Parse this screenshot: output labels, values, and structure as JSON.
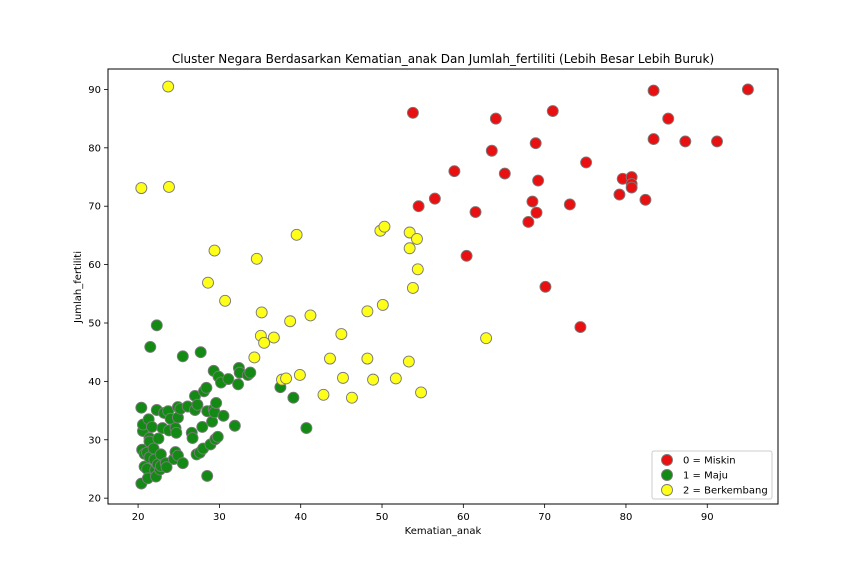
{
  "chart_data": {
    "type": "scatter",
    "title": "Cluster Negara Berdasarkan Kematian_anak Dan Jumlah_fertiliti (Lebih Besar Lebih Buruk)",
    "xlabel": "Kematian_anak",
    "ylabel": "Jumlah_fertiliti",
    "xlim": [
      16.3,
      98.7
    ],
    "ylim": [
      19.0,
      93.5
    ],
    "xticks": [
      20,
      30,
      40,
      50,
      60,
      70,
      80,
      90
    ],
    "yticks": [
      20,
      30,
      40,
      50,
      60,
      70,
      80,
      90
    ],
    "grid": false,
    "legend_position": "lower-right",
    "series": [
      {
        "name": "0 = Miskin",
        "color": "#e81010",
        "points": [
          [
            53.8,
            86.0
          ],
          [
            54.5,
            70.0
          ],
          [
            56.5,
            71.3
          ],
          [
            58.9,
            76.0
          ],
          [
            60.4,
            61.5
          ],
          [
            61.5,
            69.0
          ],
          [
            63.5,
            79.5
          ],
          [
            64.0,
            85.0
          ],
          [
            65.1,
            75.6
          ],
          [
            68.0,
            67.3
          ],
          [
            68.5,
            70.8
          ],
          [
            68.9,
            80.8
          ],
          [
            69.0,
            68.9
          ],
          [
            69.2,
            74.4
          ],
          [
            70.1,
            56.2
          ],
          [
            71.0,
            86.3
          ],
          [
            73.1,
            70.3
          ],
          [
            74.4,
            49.3
          ],
          [
            75.1,
            77.5
          ],
          [
            79.2,
            72.0
          ],
          [
            79.6,
            74.7
          ],
          [
            80.7,
            75.0
          ],
          [
            80.7,
            73.8
          ],
          [
            80.7,
            73.2
          ],
          [
            82.4,
            71.1
          ],
          [
            83.4,
            89.8
          ],
          [
            83.4,
            81.5
          ],
          [
            85.2,
            85.0
          ],
          [
            87.3,
            81.1
          ],
          [
            91.2,
            81.1
          ],
          [
            95.0,
            90.0
          ]
        ]
      },
      {
        "name": "1 = Maju",
        "color": "#138a13",
        "points": [
          [
            20.4,
            22.5
          ],
          [
            20.4,
            35.5
          ],
          [
            20.5,
            28.3
          ],
          [
            20.6,
            31.5
          ],
          [
            20.6,
            32.6
          ],
          [
            20.8,
            27.6
          ],
          [
            20.8,
            25.4
          ],
          [
            21.1,
            27.8
          ],
          [
            21.1,
            25.0
          ],
          [
            21.2,
            23.4
          ],
          [
            21.3,
            33.5
          ],
          [
            21.4,
            30.3
          ],
          [
            21.4,
            29.7
          ],
          [
            21.4,
            27.0
          ],
          [
            21.5,
            45.9
          ],
          [
            21.7,
            32.2
          ],
          [
            21.9,
            28.5
          ],
          [
            22.0,
            26.6
          ],
          [
            22.1,
            24.8
          ],
          [
            22.2,
            23.7
          ],
          [
            22.3,
            49.6
          ],
          [
            22.3,
            35.1
          ],
          [
            22.4,
            25.8
          ],
          [
            22.5,
            30.2
          ],
          [
            22.7,
            24.9
          ],
          [
            22.8,
            27.5
          ],
          [
            22.8,
            25.5
          ],
          [
            23.0,
            32.0
          ],
          [
            23.2,
            34.6
          ],
          [
            23.4,
            26.0
          ],
          [
            23.5,
            25.3
          ],
          [
            23.7,
            34.9
          ],
          [
            23.8,
            31.6
          ],
          [
            24.0,
            33.6
          ],
          [
            24.4,
            26.7
          ],
          [
            24.6,
            27.9
          ],
          [
            24.6,
            32.0
          ],
          [
            24.7,
            31.2
          ],
          [
            24.9,
            35.6
          ],
          [
            24.9,
            33.8
          ],
          [
            24.9,
            27.3
          ],
          [
            25.2,
            35.3
          ],
          [
            25.5,
            44.3
          ],
          [
            25.5,
            26.0
          ],
          [
            26.1,
            35.7
          ],
          [
            26.6,
            31.2
          ],
          [
            26.7,
            30.3
          ],
          [
            27.0,
            37.5
          ],
          [
            27.0,
            35.1
          ],
          [
            27.2,
            27.5
          ],
          [
            27.3,
            36.0
          ],
          [
            27.6,
            27.8
          ],
          [
            27.7,
            45.0
          ],
          [
            27.9,
            32.2
          ],
          [
            28.0,
            28.5
          ],
          [
            28.1,
            38.3
          ],
          [
            28.4,
            38.9
          ],
          [
            28.5,
            34.9
          ],
          [
            28.5,
            23.8
          ],
          [
            28.9,
            29.2
          ],
          [
            29.1,
            33.1
          ],
          [
            29.3,
            41.8
          ],
          [
            29.3,
            35.2
          ],
          [
            29.4,
            34.7
          ],
          [
            29.5,
            30.1
          ],
          [
            29.6,
            36.3
          ],
          [
            29.8,
            30.5
          ],
          [
            29.9,
            40.8
          ],
          [
            30.2,
            39.8
          ],
          [
            30.5,
            34.1
          ],
          [
            31.1,
            40.4
          ],
          [
            31.9,
            32.4
          ],
          [
            32.3,
            39.5
          ],
          [
            32.4,
            42.3
          ],
          [
            32.5,
            41.5
          ],
          [
            33.5,
            41.1
          ],
          [
            33.8,
            41.5
          ],
          [
            37.5,
            39.0
          ],
          [
            39.1,
            37.2
          ],
          [
            40.7,
            32.0
          ]
        ]
      },
      {
        "name": "2 = Berkembang",
        "color": "#ffff1a",
        "points": [
          [
            20.4,
            73.1
          ],
          [
            23.7,
            90.5
          ],
          [
            23.8,
            73.3
          ],
          [
            28.6,
            56.9
          ],
          [
            29.4,
            62.4
          ],
          [
            30.7,
            53.8
          ],
          [
            34.3,
            44.1
          ],
          [
            34.6,
            61.0
          ],
          [
            35.1,
            47.8
          ],
          [
            35.2,
            51.8
          ],
          [
            35.5,
            46.6
          ],
          [
            36.7,
            47.5
          ],
          [
            37.7,
            40.3
          ],
          [
            38.2,
            40.5
          ],
          [
            38.7,
            50.3
          ],
          [
            39.5,
            65.1
          ],
          [
            39.9,
            41.1
          ],
          [
            41.2,
            51.3
          ],
          [
            42.8,
            37.7
          ],
          [
            43.6,
            43.9
          ],
          [
            45.0,
            48.1
          ],
          [
            45.2,
            40.6
          ],
          [
            46.3,
            37.2
          ],
          [
            48.2,
            52.0
          ],
          [
            48.2,
            43.9
          ],
          [
            48.9,
            40.3
          ],
          [
            49.8,
            65.8
          ],
          [
            50.1,
            53.1
          ],
          [
            50.3,
            66.5
          ],
          [
            51.7,
            40.5
          ],
          [
            53.3,
            43.4
          ],
          [
            53.4,
            65.5
          ],
          [
            53.4,
            62.8
          ],
          [
            53.8,
            56.0
          ],
          [
            54.3,
            64.4
          ],
          [
            54.4,
            59.2
          ],
          [
            54.8,
            38.1
          ],
          [
            62.8,
            47.4
          ]
        ]
      }
    ]
  }
}
